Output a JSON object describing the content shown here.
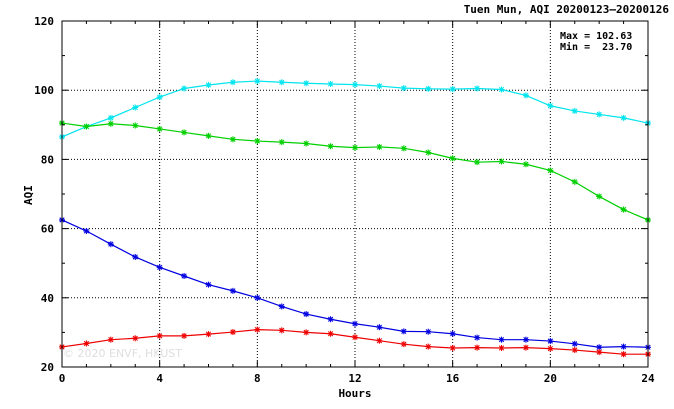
{
  "chart_data": {
    "type": "line",
    "title": "Tuen Mun, AQI 20200123–20200126",
    "xlabel": "Hours",
    "ylabel": "AQI",
    "xlim": [
      0,
      24
    ],
    "ylim": [
      20,
      120
    ],
    "x_ticks": [
      0,
      4,
      8,
      12,
      16,
      20,
      24
    ],
    "y_ticks": [
      20,
      40,
      60,
      80,
      100,
      120
    ],
    "grid": true,
    "annotations": {
      "max_label": "Max = 102.63",
      "min_label": "Min =  23.70"
    },
    "watermark": "© 2020 ENVF, HKUST",
    "x": [
      0,
      1,
      2,
      3,
      4,
      5,
      6,
      7,
      8,
      9,
      10,
      11,
      12,
      13,
      14,
      15,
      16,
      17,
      18,
      19,
      20,
      21,
      22,
      23,
      24
    ],
    "series": [
      {
        "color": "#00e5ee",
        "values": [
          86.5,
          89.5,
          92.0,
          95.0,
          98.0,
          100.5,
          101.5,
          102.3,
          102.63,
          102.3,
          102.0,
          101.8,
          101.6,
          101.2,
          100.6,
          100.4,
          100.3,
          100.5,
          100.2,
          98.5,
          95.5,
          94.0,
          93.0,
          92.0,
          90.5
        ]
      },
      {
        "color": "#00d000",
        "values": [
          90.5,
          89.5,
          90.3,
          89.8,
          88.8,
          87.8,
          86.8,
          85.8,
          85.3,
          85.0,
          84.6,
          83.8,
          83.4,
          83.6,
          83.2,
          82.0,
          80.3,
          79.2,
          79.4,
          78.6,
          76.8,
          73.5,
          69.3,
          65.5,
          62.5
        ]
      },
      {
        "color": "#0000e0",
        "values": [
          62.5,
          59.3,
          55.5,
          51.8,
          48.8,
          46.3,
          43.8,
          42.0,
          40.0,
          37.5,
          35.3,
          33.8,
          32.5,
          31.5,
          30.3,
          30.2,
          29.6,
          28.5,
          27.9,
          27.9,
          27.5,
          26.7,
          25.7,
          25.9,
          25.7
        ]
      },
      {
        "color": "#ee0000",
        "values": [
          25.8,
          26.8,
          27.9,
          28.3,
          29.0,
          29.0,
          29.5,
          30.1,
          30.8,
          30.6,
          30.0,
          29.6,
          28.6,
          27.6,
          26.6,
          25.9,
          25.5,
          25.6,
          25.5,
          25.6,
          25.3,
          24.9,
          24.3,
          23.7,
          23.7
        ]
      }
    ]
  }
}
